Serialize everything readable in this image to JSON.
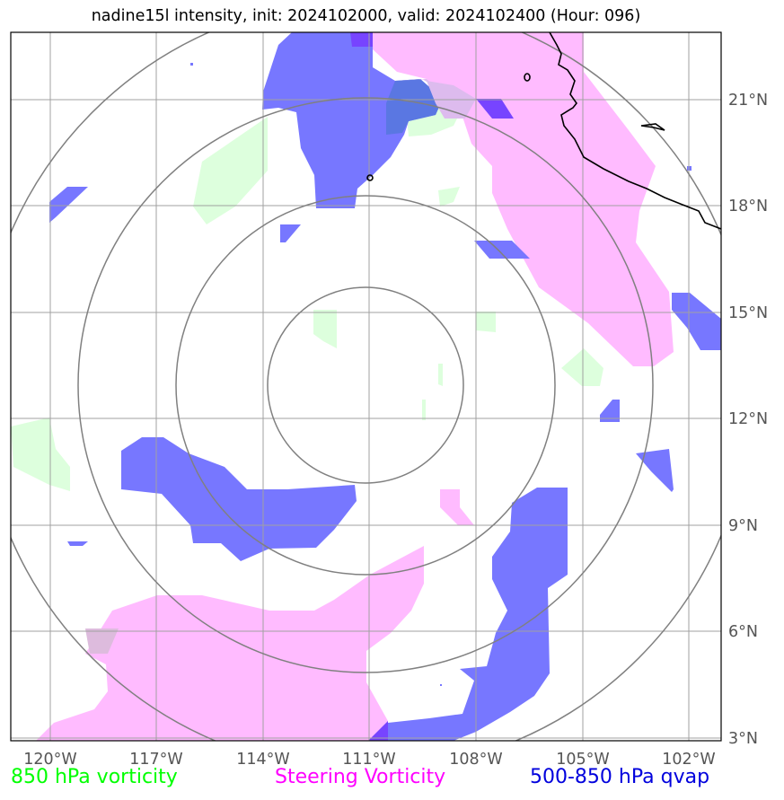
{
  "title": "nadine15l intensity, init: 2024102000, valid: 2024102400 (Hour: 096)",
  "map": {
    "lon_labels": [
      "120°W",
      "117°W",
      "114°W",
      "111°W",
      "108°W",
      "105°W",
      "102°W"
    ],
    "lat_labels": [
      "21°N",
      "18°N",
      "15°N",
      "12°N",
      "9°N",
      "6°N",
      "3°N"
    ],
    "range_rings": 4
  },
  "legend": {
    "vort850": "850 hPa vorticity",
    "steering": "Steering Vorticity",
    "qvap": "500-850 hPa qvap"
  },
  "colors": {
    "vort850": "#00ff00",
    "steering": "#ff00ff",
    "qvap": "#0000dd",
    "vort850_fill": "#ddffdd",
    "steering_fill": "#ffbbff",
    "qvap_fill": "#7777ff"
  }
}
